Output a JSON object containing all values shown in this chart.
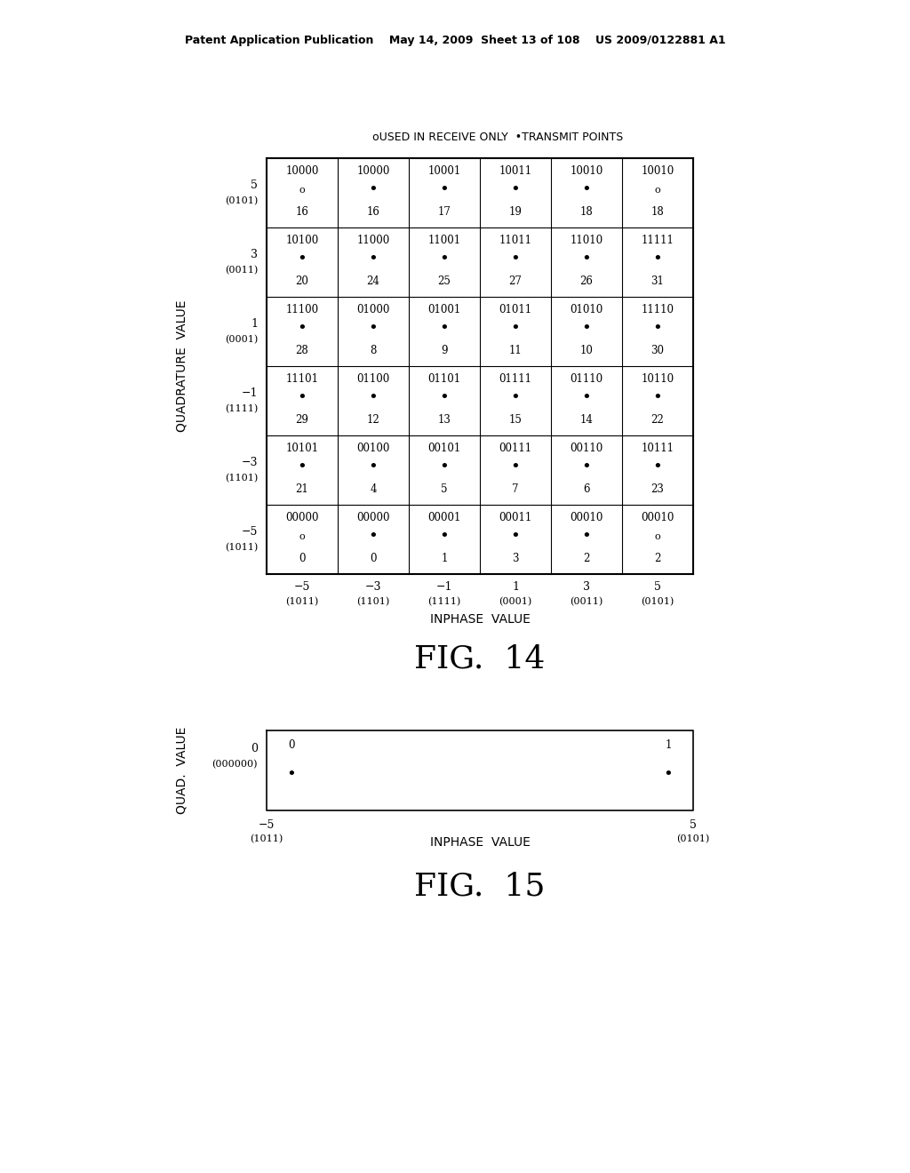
{
  "header_text": "Patent Application Publication    May 14, 2009  Sheet 13 of 108    US 2009/0122881 A1",
  "legend_text": "oUSED IN RECEIVE ONLY  •TRANSMIT POINTS",
  "fig14_title": "FIG.  14",
  "fig15_title": "FIG.  15",
  "fig14_xlabel": "INPHASE  VALUE",
  "fig14_ylabel": "QUADRATURE  VALUE",
  "fig15_xlabel": "INPHASE  VALUE",
  "fig15_ylabel": "QUAD.  VALUE",
  "row_labels": [
    [
      "5",
      "(0101)"
    ],
    [
      "3",
      "(0011)"
    ],
    [
      "1",
      "(0001)"
    ],
    [
      "−1",
      "(1111)"
    ],
    [
      "−3",
      "(1101)"
    ],
    [
      "−5",
      "(1011)"
    ]
  ],
  "col_labels": [
    [
      "−5",
      "(1011)"
    ],
    [
      "−3",
      "(1101)"
    ],
    [
      "−1",
      "(1111)"
    ],
    [
      "1",
      "(0001)"
    ],
    [
      "3",
      "(0011)"
    ],
    [
      "5",
      "(0101)"
    ]
  ],
  "cells": [
    [
      {
        "code": "10000",
        "symbol": "o",
        "num": "16"
      },
      {
        "code": "10000",
        "symbol": "•",
        "num": "16"
      },
      {
        "code": "10001",
        "symbol": "•",
        "num": "17"
      },
      {
        "code": "10011",
        "symbol": "•",
        "num": "19"
      },
      {
        "code": "10010",
        "symbol": "•",
        "num": "18"
      },
      {
        "code": "10010",
        "symbol": "o",
        "num": "18"
      }
    ],
    [
      {
        "code": "10100",
        "symbol": "•",
        "num": "20"
      },
      {
        "code": "11000",
        "symbol": "•",
        "num": "24"
      },
      {
        "code": "11001",
        "symbol": "•",
        "num": "25"
      },
      {
        "code": "11011",
        "symbol": "•",
        "num": "27"
      },
      {
        "code": "11010",
        "symbol": "•",
        "num": "26"
      },
      {
        "code": "11111",
        "symbol": "•",
        "num": "31"
      }
    ],
    [
      {
        "code": "11100",
        "symbol": "•",
        "num": "28"
      },
      {
        "code": "01000",
        "symbol": "•",
        "num": "8"
      },
      {
        "code": "01001",
        "symbol": "•",
        "num": "9"
      },
      {
        "code": "01011",
        "symbol": "•",
        "num": "11"
      },
      {
        "code": "01010",
        "symbol": "•",
        "num": "10"
      },
      {
        "code": "11110",
        "symbol": "•",
        "num": "30"
      }
    ],
    [
      {
        "code": "11101",
        "symbol": "•",
        "num": "29"
      },
      {
        "code": "01100",
        "symbol": "•",
        "num": "12"
      },
      {
        "code": "01101",
        "symbol": "•",
        "num": "13"
      },
      {
        "code": "01111",
        "symbol": "•",
        "num": "15"
      },
      {
        "code": "01110",
        "symbol": "•",
        "num": "14"
      },
      {
        "code": "10110",
        "symbol": "•",
        "num": "22"
      }
    ],
    [
      {
        "code": "10101",
        "symbol": "•",
        "num": "21"
      },
      {
        "code": "00100",
        "symbol": "•",
        "num": "4"
      },
      {
        "code": "00101",
        "symbol": "•",
        "num": "5"
      },
      {
        "code": "00111",
        "symbol": "•",
        "num": "7"
      },
      {
        "code": "00110",
        "symbol": "•",
        "num": "6"
      },
      {
        "code": "10111",
        "symbol": "•",
        "num": "23"
      }
    ],
    [
      {
        "code": "00000",
        "symbol": "o",
        "num": "0"
      },
      {
        "code": "00000",
        "symbol": "•",
        "num": "0"
      },
      {
        "code": "00001",
        "symbol": "•",
        "num": "1"
      },
      {
        "code": "00011",
        "symbol": "•",
        "num": "3"
      },
      {
        "code": "00010",
        "symbol": "•",
        "num": "2"
      },
      {
        "code": "00010",
        "symbol": "o",
        "num": "2"
      }
    ]
  ],
  "fig15_row_label": [
    "0",
    "(000000)"
  ],
  "fig15_col_left": [
    "−5",
    "(1011)"
  ],
  "fig15_col_right": [
    "5",
    "(0101)"
  ]
}
